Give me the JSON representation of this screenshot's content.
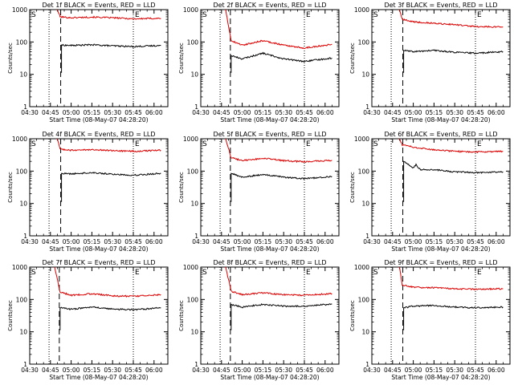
{
  "chart_data": [
    {
      "type": "line",
      "title": "Det 1f BLACK = Events, RED = LLD",
      "xlabel": "Start Time (08-May-07 04:28:20)",
      "ylabel": "Counts/sec",
      "yscale": "log",
      "ylim": [
        1,
        1000
      ],
      "y_ticks": [
        "1",
        "10",
        "100",
        "1000"
      ],
      "x_ticks": [
        "04:30",
        "04:45",
        "05:00",
        "05:15",
        "05:30",
        "05:45",
        "06:00"
      ],
      "xlim": [
        "04:30",
        "06:10"
      ],
      "markers": [
        {
          "label": "S",
          "x": "04:30"
        },
        {
          "label": "E",
          "x": "05:45"
        }
      ],
      "series": [
        {
          "name": "LLD",
          "color": "#dd0000",
          "points": [
            [
              "04:50",
              1000
            ],
            [
              "04:52",
              600
            ],
            [
              "05:00",
              560
            ],
            [
              "05:15",
              590
            ],
            [
              "05:30",
              560
            ],
            [
              "05:45",
              520
            ],
            [
              "06:05",
              540
            ]
          ]
        },
        {
          "name": "Events",
          "color": "#000000",
          "points": [
            [
              "04:53",
              80
            ],
            [
              "05:00",
              78
            ],
            [
              "05:15",
              82
            ],
            [
              "05:30",
              76
            ],
            [
              "05:45",
              72
            ],
            [
              "06:05",
              78
            ]
          ]
        }
      ]
    },
    {
      "type": "line",
      "title": "Det 2f BLACK = Events, RED = LLD",
      "xlabel": "Start Time (08-May-07 04:28:20)",
      "ylabel": "Counts/sec",
      "yscale": "log",
      "ylim": [
        1,
        1000
      ],
      "y_ticks": [
        "1",
        "10",
        "100",
        "1000"
      ],
      "x_ticks": [
        "04:30",
        "04:45",
        "05:00",
        "05:15",
        "05:30",
        "05:45",
        "06:00"
      ],
      "xlim": [
        "04:30",
        "06:10"
      ],
      "markers": [
        {
          "label": "S",
          "x": "04:30"
        },
        {
          "label": "E",
          "x": "05:45"
        }
      ],
      "series": [
        {
          "name": "LLD",
          "color": "#dd0000",
          "points": [
            [
              "04:48",
              1000
            ],
            [
              "04:52",
              110
            ],
            [
              "05:00",
              80
            ],
            [
              "05:15",
              110
            ],
            [
              "05:30",
              80
            ],
            [
              "05:45",
              65
            ],
            [
              "06:05",
              85
            ]
          ]
        },
        {
          "name": "Events",
          "color": "#000000",
          "points": [
            [
              "04:52",
              38
            ],
            [
              "05:00",
              30
            ],
            [
              "05:15",
              45
            ],
            [
              "05:30",
              30
            ],
            [
              "05:45",
              25
            ],
            [
              "06:05",
              32
            ]
          ]
        }
      ]
    },
    {
      "type": "line",
      "title": "Det 3f BLACK = Events, RED = LLD",
      "xlabel": "Start Time (08-May-07 04:28:20)",
      "ylabel": "Counts/sec",
      "yscale": "log",
      "ylim": [
        1,
        1000
      ],
      "y_ticks": [
        "1",
        "10",
        "100",
        "1000"
      ],
      "x_ticks": [
        "04:30",
        "04:45",
        "05:00",
        "05:15",
        "05:30",
        "05:45",
        "06:00"
      ],
      "xlim": [
        "04:30",
        "06:10"
      ],
      "markers": [
        {
          "label": "S",
          "x": "04:30"
        },
        {
          "label": "E",
          "x": "05:45"
        }
      ],
      "series": [
        {
          "name": "LLD",
          "color": "#dd0000",
          "points": [
            [
              "04:50",
              1000
            ],
            [
              "04:52",
              500
            ],
            [
              "05:00",
              420
            ],
            [
              "05:15",
              380
            ],
            [
              "05:30",
              340
            ],
            [
              "05:45",
              300
            ],
            [
              "06:05",
              290
            ]
          ]
        },
        {
          "name": "Events",
          "color": "#000000",
          "points": [
            [
              "04:53",
              55
            ],
            [
              "05:00",
              50
            ],
            [
              "05:15",
              55
            ],
            [
              "05:30",
              48
            ],
            [
              "05:45",
              45
            ],
            [
              "06:05",
              50
            ]
          ]
        }
      ]
    },
    {
      "type": "line",
      "title": "Det 4f BLACK = Events, RED = LLD",
      "xlabel": "Start Time (08-May-07 04:28:20)",
      "ylabel": "Counts/sec",
      "yscale": "log",
      "ylim": [
        1,
        1000
      ],
      "y_ticks": [
        "1",
        "10",
        "100",
        "1000"
      ],
      "x_ticks": [
        "04:30",
        "04:45",
        "05:00",
        "05:15",
        "05:30",
        "05:45",
        "06:00"
      ],
      "xlim": [
        "04:30",
        "06:10"
      ],
      "markers": [
        {
          "label": "S",
          "x": "04:30"
        },
        {
          "label": "E",
          "x": "05:45"
        }
      ],
      "series": [
        {
          "name": "LLD",
          "color": "#dd0000",
          "points": [
            [
              "04:50",
              1000
            ],
            [
              "04:52",
              480
            ],
            [
              "05:00",
              440
            ],
            [
              "05:15",
              460
            ],
            [
              "05:30",
              430
            ],
            [
              "05:45",
              410
            ],
            [
              "06:05",
              440
            ]
          ]
        },
        {
          "name": "Events",
          "color": "#000000",
          "points": [
            [
              "04:53",
              85
            ],
            [
              "05:00",
              82
            ],
            [
              "05:15",
              90
            ],
            [
              "05:30",
              80
            ],
            [
              "05:45",
              75
            ],
            [
              "06:05",
              85
            ]
          ]
        }
      ]
    },
    {
      "type": "line",
      "title": "Det 5f BLACK = Events, RED = LLD",
      "xlabel": "Start Time (08-May-07 04:28:20)",
      "ylabel": "Counts/sec",
      "yscale": "log",
      "ylim": [
        1,
        1000
      ],
      "y_ticks": [
        "1",
        "10",
        "100",
        "1000"
      ],
      "x_ticks": [
        "04:30",
        "04:45",
        "05:00",
        "05:15",
        "05:30",
        "05:45",
        "06:00"
      ],
      "xlim": [
        "04:30",
        "06:10"
      ],
      "markers": [
        {
          "label": "S",
          "x": "04:30"
        },
        {
          "label": "E",
          "x": "05:45"
        }
      ],
      "series": [
        {
          "name": "LLD",
          "color": "#dd0000",
          "points": [
            [
              "04:48",
              1000
            ],
            [
              "04:52",
              260
            ],
            [
              "05:00",
              210
            ],
            [
              "05:15",
              250
            ],
            [
              "05:30",
              210
            ],
            [
              "05:45",
              195
            ],
            [
              "06:05",
              215
            ]
          ]
        },
        {
          "name": "Events",
          "color": "#000000",
          "points": [
            [
              "04:52",
              85
            ],
            [
              "05:00",
              65
            ],
            [
              "05:15",
              78
            ],
            [
              "05:30",
              65
            ],
            [
              "05:45",
              58
            ],
            [
              "06:05",
              68
            ]
          ]
        }
      ]
    },
    {
      "type": "line",
      "title": "Det 6f BLACK = Events, RED = LLD",
      "xlabel": "Start Time (08-May-07 04:28:20)",
      "ylabel": "Counts/sec",
      "yscale": "log",
      "ylim": [
        1,
        1000
      ],
      "y_ticks": [
        "1",
        "10",
        "100",
        "1000"
      ],
      "x_ticks": [
        "04:30",
        "04:45",
        "05:00",
        "05:15",
        "05:30",
        "05:45",
        "06:00"
      ],
      "xlim": [
        "04:30",
        "06:10"
      ],
      "markers": [
        {
          "label": "S",
          "x": "04:30"
        },
        {
          "label": "E",
          "x": "05:45"
        }
      ],
      "series": [
        {
          "name": "LLD",
          "color": "#dd0000",
          "points": [
            [
              "04:50",
              1000
            ],
            [
              "04:52",
              650
            ],
            [
              "05:00",
              550
            ],
            [
              "05:15",
              460
            ],
            [
              "05:30",
              410
            ],
            [
              "05:45",
              390
            ],
            [
              "06:05",
              410
            ]
          ]
        },
        {
          "name": "Events",
          "color": "#000000",
          "points": [
            [
              "04:53",
              200
            ],
            [
              "05:00",
              125
            ],
            [
              "05:02",
              160
            ],
            [
              "05:05",
              110
            ],
            [
              "05:15",
              110
            ],
            [
              "05:30",
              95
            ],
            [
              "05:45",
              90
            ],
            [
              "06:05",
              95
            ]
          ]
        }
      ]
    },
    {
      "type": "line",
      "title": "Det 7f BLACK = Events, RED = LLD",
      "xlabel": "Start Time (08-May-07 04:28:20)",
      "ylabel": "Counts/sec",
      "yscale": "log",
      "ylim": [
        1,
        1000
      ],
      "y_ticks": [
        "1",
        "10",
        "100",
        "1000"
      ],
      "x_ticks": [
        "04:30",
        "04:45",
        "05:00",
        "05:15",
        "05:30",
        "05:45",
        "06:00"
      ],
      "xlim": [
        "04:30",
        "06:10"
      ],
      "markers": [
        {
          "label": "S",
          "x": "04:30"
        },
        {
          "label": "E",
          "x": "05:45"
        }
      ],
      "series": [
        {
          "name": "LLD",
          "color": "#dd0000",
          "points": [
            [
              "04:48",
              1000
            ],
            [
              "04:52",
              170
            ],
            [
              "05:00",
              135
            ],
            [
              "05:15",
              150
            ],
            [
              "05:30",
              130
            ],
            [
              "05:45",
              125
            ],
            [
              "06:05",
              140
            ]
          ]
        },
        {
          "name": "Events",
          "color": "#000000",
          "points": [
            [
              "04:52",
              55
            ],
            [
              "05:00",
              50
            ],
            [
              "05:15",
              58
            ],
            [
              "05:30",
              50
            ],
            [
              "05:45",
              48
            ],
            [
              "06:05",
              55
            ]
          ]
        }
      ]
    },
    {
      "type": "line",
      "title": "Det 8f BLACK = Events, RED = LLD",
      "xlabel": "Start Time (08-May-07 04:28:20)",
      "ylabel": "Counts/sec",
      "yscale": "log",
      "ylim": [
        1,
        1000
      ],
      "y_ticks": [
        "1",
        "10",
        "100",
        "1000"
      ],
      "x_ticks": [
        "04:30",
        "04:45",
        "05:00",
        "05:15",
        "05:30",
        "05:45",
        "06:00"
      ],
      "xlim": [
        "04:30",
        "06:10"
      ],
      "markers": [
        {
          "label": "S",
          "x": "04:30"
        },
        {
          "label": "E",
          "x": "05:45"
        }
      ],
      "series": [
        {
          "name": "LLD",
          "color": "#dd0000",
          "points": [
            [
              "04:48",
              1000
            ],
            [
              "04:52",
              180
            ],
            [
              "05:00",
              140
            ],
            [
              "05:15",
              160
            ],
            [
              "05:30",
              140
            ],
            [
              "05:45",
              135
            ],
            [
              "06:05",
              150
            ]
          ]
        },
        {
          "name": "Events",
          "color": "#000000",
          "points": [
            [
              "04:52",
              70
            ],
            [
              "05:00",
              58
            ],
            [
              "05:15",
              70
            ],
            [
              "05:30",
              62
            ],
            [
              "05:45",
              62
            ],
            [
              "06:05",
              72
            ]
          ]
        }
      ]
    },
    {
      "type": "line",
      "title": "Det 9f BLACK = Events, RED = LLD",
      "xlabel": "Start Time (08-May-07 04:28:20)",
      "ylabel": "Counts/sec",
      "yscale": "log",
      "ylim": [
        1,
        1000
      ],
      "y_ticks": [
        "1",
        "10",
        "100",
        "1000"
      ],
      "x_ticks": [
        "04:30",
        "04:45",
        "05:00",
        "05:15",
        "05:30",
        "05:45",
        "06:00"
      ],
      "xlim": [
        "04:30",
        "06:10"
      ],
      "markers": [
        {
          "label": "S",
          "x": "04:30"
        },
        {
          "label": "E",
          "x": "05:45"
        }
      ],
      "series": [
        {
          "name": "LLD",
          "color": "#dd0000",
          "points": [
            [
              "04:50",
              1000
            ],
            [
              "04:52",
              280
            ],
            [
              "05:00",
              240
            ],
            [
              "05:15",
              230
            ],
            [
              "05:30",
              215
            ],
            [
              "05:45",
              205
            ],
            [
              "06:05",
              215
            ]
          ]
        },
        {
          "name": "Events",
          "color": "#000000",
          "points": [
            [
              "04:53",
              55
            ],
            [
              "05:00",
              62
            ],
            [
              "05:15",
              65
            ],
            [
              "05:30",
              58
            ],
            [
              "05:45",
              55
            ],
            [
              "06:05",
              58
            ]
          ]
        }
      ]
    }
  ]
}
